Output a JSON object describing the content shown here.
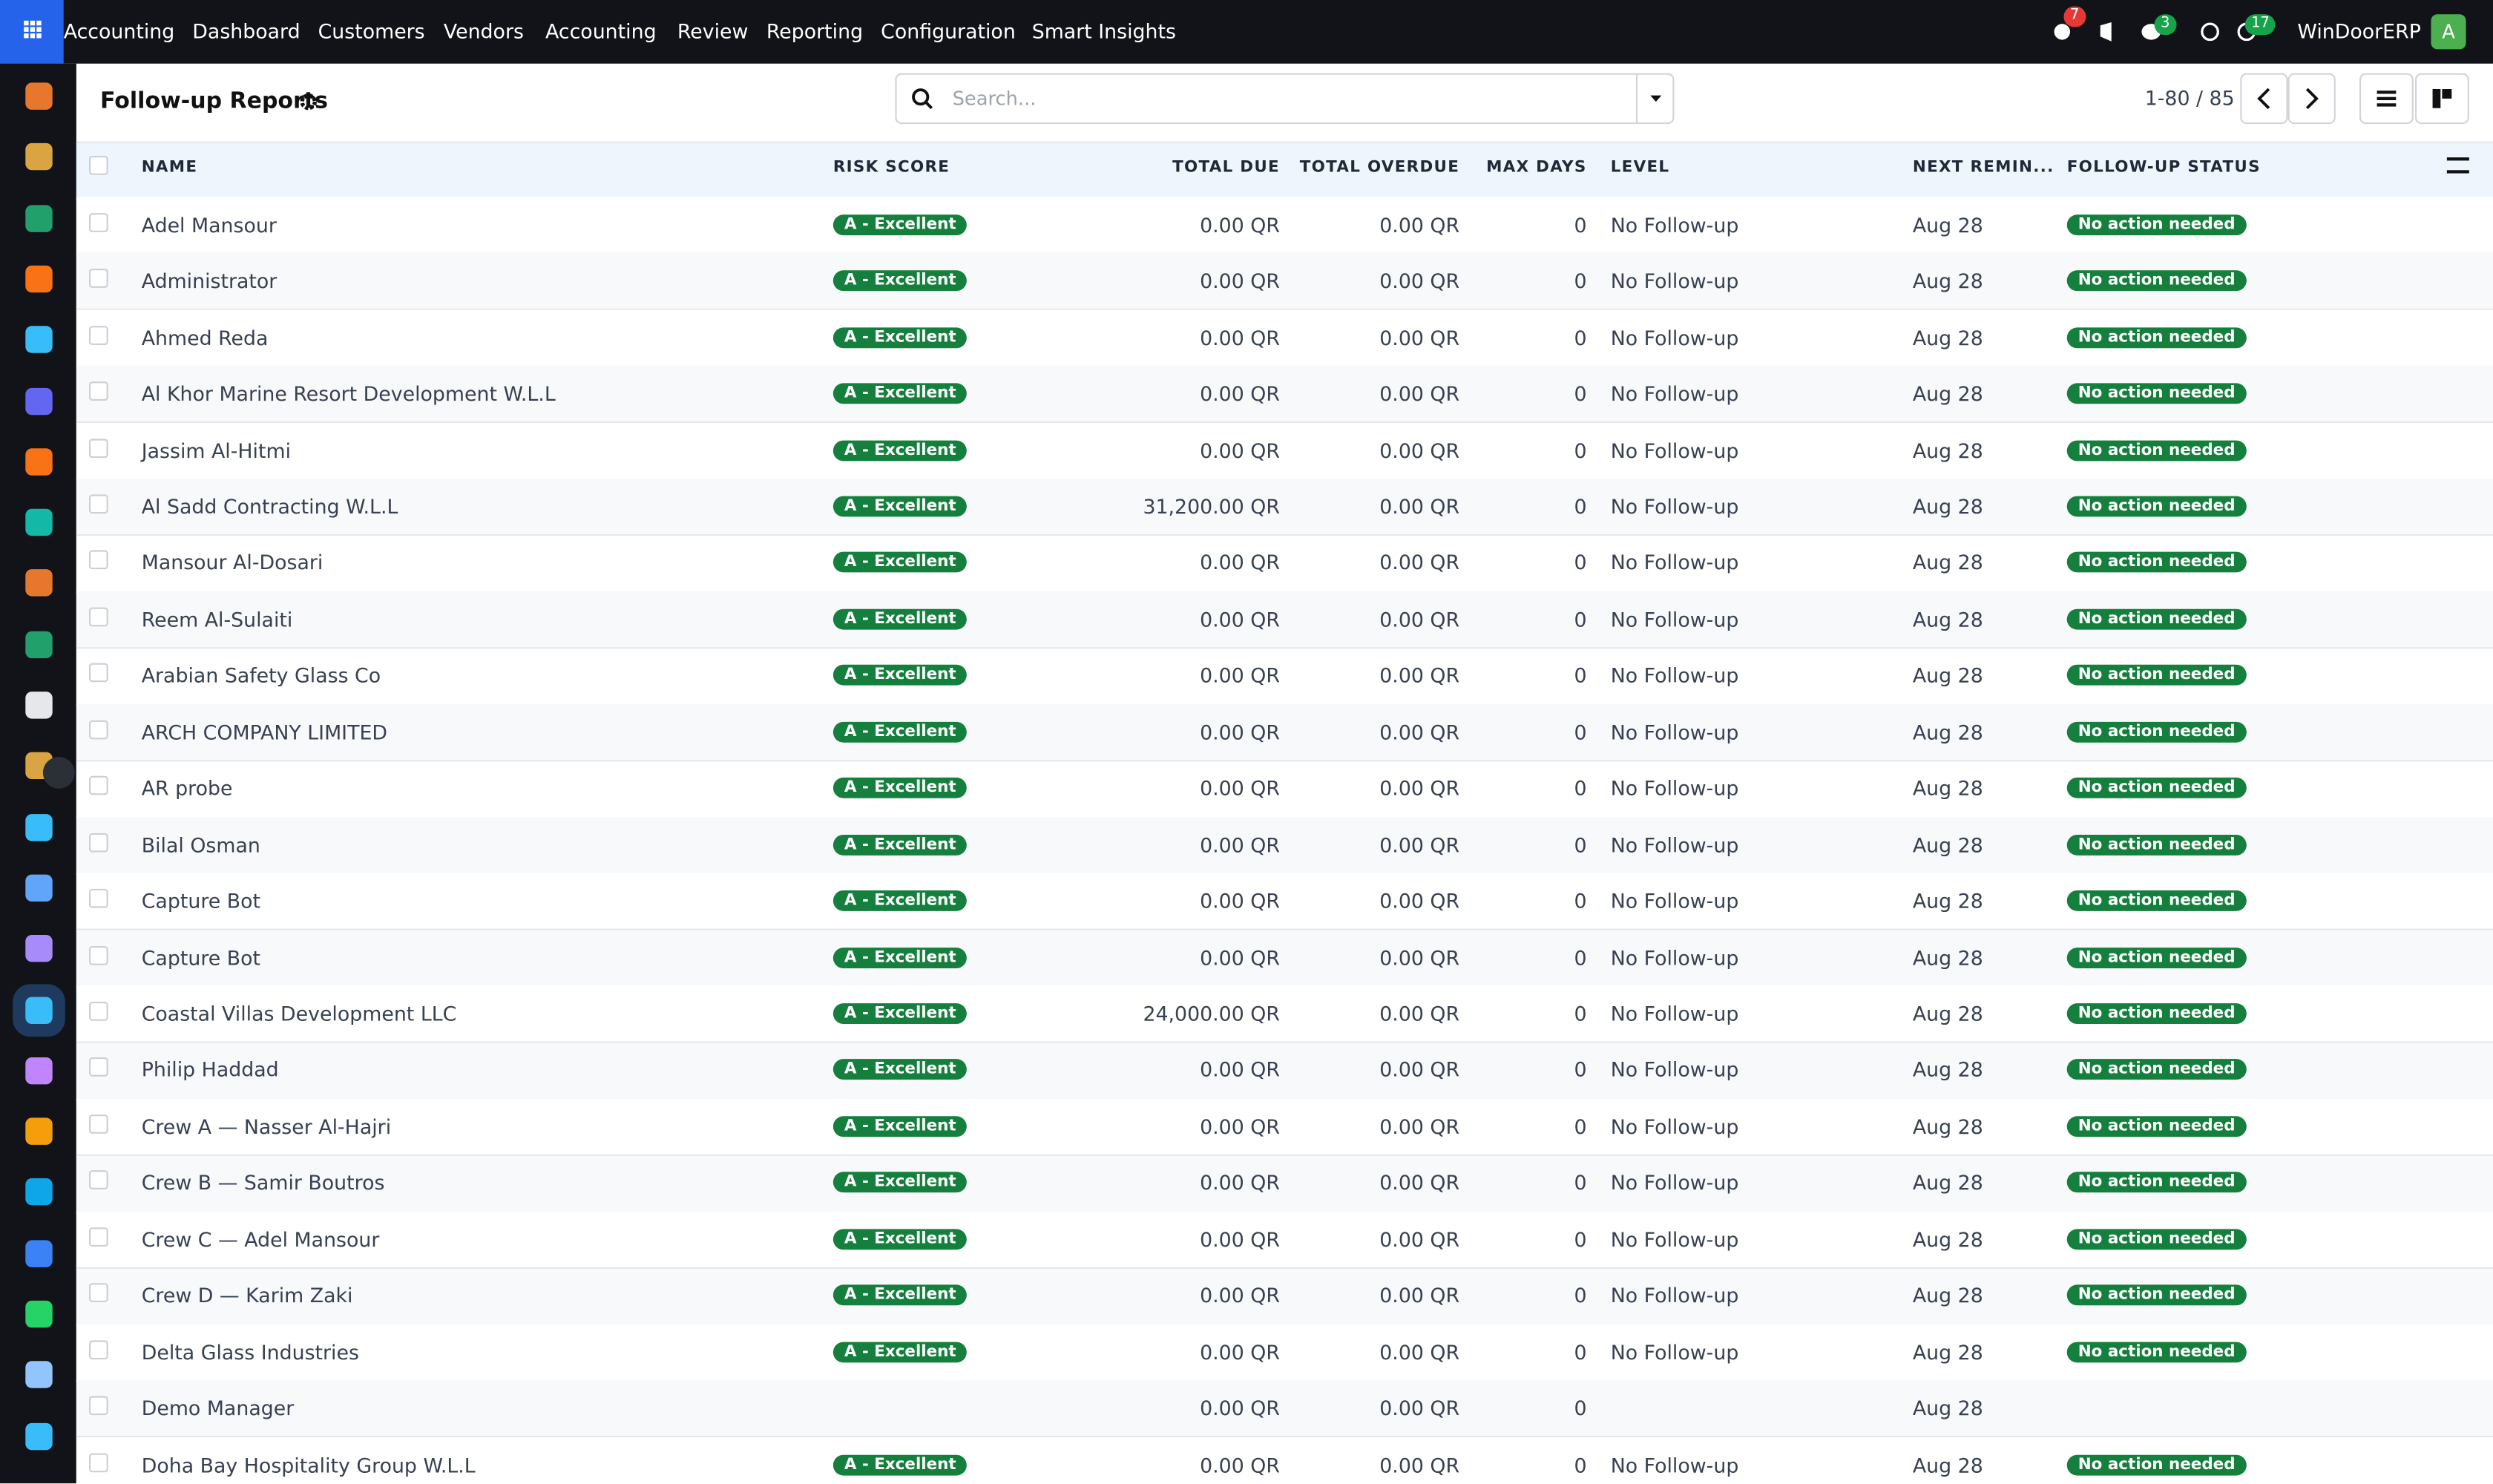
{
  "topbar": {
    "app": "Accounting",
    "menu": [
      "Dashboard",
      "Customers",
      "Vendors",
      "Accounting",
      "Review",
      "Reporting",
      "Configuration",
      "Smart Insights"
    ],
    "badges": {
      "notifications": "7",
      "messages": "3",
      "activities": "17"
    },
    "company": "WinDoorERP",
    "avatar": "A"
  },
  "header": {
    "title": "Follow-up Reports",
    "search_placeholder": "Search...",
    "pager": "1-80 / 85"
  },
  "table": {
    "columns": [
      "NAME",
      "RISK SCORE",
      "TOTAL DUE",
      "TOTAL OVERDUE",
      "MAX DAYS",
      "LEVEL",
      "NEXT REMIN...",
      "FOLLOW-UP STATUS"
    ],
    "rows": [
      {
        "name": "Adel Mansour",
        "risk": "A - Excellent",
        "due": "0.00 QR",
        "overdue": "0.00 QR",
        "days": "0",
        "level": "No Follow-up",
        "next": "Aug 28",
        "status": "No action needed"
      },
      {
        "name": "Administrator",
        "risk": "A - Excellent",
        "due": "0.00 QR",
        "overdue": "0.00 QR",
        "days": "0",
        "level": "No Follow-up",
        "next": "Aug 28",
        "status": "No action needed"
      },
      {
        "name": "Ahmed Reda",
        "risk": "A - Excellent",
        "due": "0.00 QR",
        "overdue": "0.00 QR",
        "days": "0",
        "level": "No Follow-up",
        "next": "Aug 28",
        "status": "No action needed"
      },
      {
        "name": "Al Khor Marine Resort Development W.L.L",
        "risk": "A - Excellent",
        "due": "0.00 QR",
        "overdue": "0.00 QR",
        "days": "0",
        "level": "No Follow-up",
        "next": "Aug 28",
        "status": "No action needed"
      },
      {
        "name": "Jassim Al-Hitmi",
        "risk": "A - Excellent",
        "due": "0.00 QR",
        "overdue": "0.00 QR",
        "days": "0",
        "level": "No Follow-up",
        "next": "Aug 28",
        "status": "No action needed"
      },
      {
        "name": "Al Sadd Contracting W.L.L",
        "risk": "A - Excellent",
        "due": "31,200.00 QR",
        "overdue": "0.00 QR",
        "days": "0",
        "level": "No Follow-up",
        "next": "Aug 28",
        "status": "No action needed"
      },
      {
        "name": "Mansour Al-Dosari",
        "risk": "A - Excellent",
        "due": "0.00 QR",
        "overdue": "0.00 QR",
        "days": "0",
        "level": "No Follow-up",
        "next": "Aug 28",
        "status": "No action needed"
      },
      {
        "name": "Reem Al-Sulaiti",
        "risk": "A - Excellent",
        "due": "0.00 QR",
        "overdue": "0.00 QR",
        "days": "0",
        "level": "No Follow-up",
        "next": "Aug 28",
        "status": "No action needed"
      },
      {
        "name": "Arabian Safety Glass Co",
        "risk": "A - Excellent",
        "due": "0.00 QR",
        "overdue": "0.00 QR",
        "days": "0",
        "level": "No Follow-up",
        "next": "Aug 28",
        "status": "No action needed"
      },
      {
        "name": "ARCH COMPANY LIMITED",
        "risk": "A - Excellent",
        "due": "0.00 QR",
        "overdue": "0.00 QR",
        "days": "0",
        "level": "No Follow-up",
        "next": "Aug 28",
        "status": "No action needed"
      },
      {
        "name": "AR probe",
        "risk": "A - Excellent",
        "due": "0.00 QR",
        "overdue": "0.00 QR",
        "days": "0",
        "level": "No Follow-up",
        "next": "Aug 28",
        "status": "No action needed"
      },
      {
        "name": "Bilal Osman",
        "risk": "A - Excellent",
        "due": "0.00 QR",
        "overdue": "0.00 QR",
        "days": "0",
        "level": "No Follow-up",
        "next": "Aug 28",
        "status": "No action needed"
      },
      {
        "name": "Capture Bot",
        "risk": "A - Excellent",
        "due": "0.00 QR",
        "overdue": "0.00 QR",
        "days": "0",
        "level": "No Follow-up",
        "next": "Aug 28",
        "status": "No action needed"
      },
      {
        "name": "Capture Bot",
        "risk": "A - Excellent",
        "due": "0.00 QR",
        "overdue": "0.00 QR",
        "days": "0",
        "level": "No Follow-up",
        "next": "Aug 28",
        "status": "No action needed"
      },
      {
        "name": "Coastal Villas Development LLC",
        "risk": "A - Excellent",
        "due": "24,000.00 QR",
        "overdue": "0.00 QR",
        "days": "0",
        "level": "No Follow-up",
        "next": "Aug 28",
        "status": "No action needed"
      },
      {
        "name": "Philip Haddad",
        "risk": "A - Excellent",
        "due": "0.00 QR",
        "overdue": "0.00 QR",
        "days": "0",
        "level": "No Follow-up",
        "next": "Aug 28",
        "status": "No action needed"
      },
      {
        "name": "Crew A — Nasser Al-Hajri",
        "risk": "A - Excellent",
        "due": "0.00 QR",
        "overdue": "0.00 QR",
        "days": "0",
        "level": "No Follow-up",
        "next": "Aug 28",
        "status": "No action needed"
      },
      {
        "name": "Crew B — Samir Boutros",
        "risk": "A - Excellent",
        "due": "0.00 QR",
        "overdue": "0.00 QR",
        "days": "0",
        "level": "No Follow-up",
        "next": "Aug 28",
        "status": "No action needed"
      },
      {
        "name": "Crew C — Adel Mansour",
        "risk": "A - Excellent",
        "due": "0.00 QR",
        "overdue": "0.00 QR",
        "days": "0",
        "level": "No Follow-up",
        "next": "Aug 28",
        "status": "No action needed"
      },
      {
        "name": "Crew D — Karim Zaki",
        "risk": "A - Excellent",
        "due": "0.00 QR",
        "overdue": "0.00 QR",
        "days": "0",
        "level": "No Follow-up",
        "next": "Aug 28",
        "status": "No action needed"
      },
      {
        "name": "Delta Glass Industries",
        "risk": "A - Excellent",
        "due": "0.00 QR",
        "overdue": "0.00 QR",
        "days": "0",
        "level": "No Follow-up",
        "next": "Aug 28",
        "status": "No action needed"
      },
      {
        "name": "Demo Manager",
        "due": "0.00 QR",
        "overdue": "0.00 QR",
        "days": "0",
        "next": "Aug 28"
      },
      {
        "name": "Doha Bay Hospitality Group W.L.L",
        "risk": "A - Excellent",
        "due": "0.00 QR",
        "overdue": "0.00 QR",
        "days": "0",
        "level": "No Follow-up",
        "next": "Aug 28",
        "status": "No action needed"
      }
    ]
  }
}
